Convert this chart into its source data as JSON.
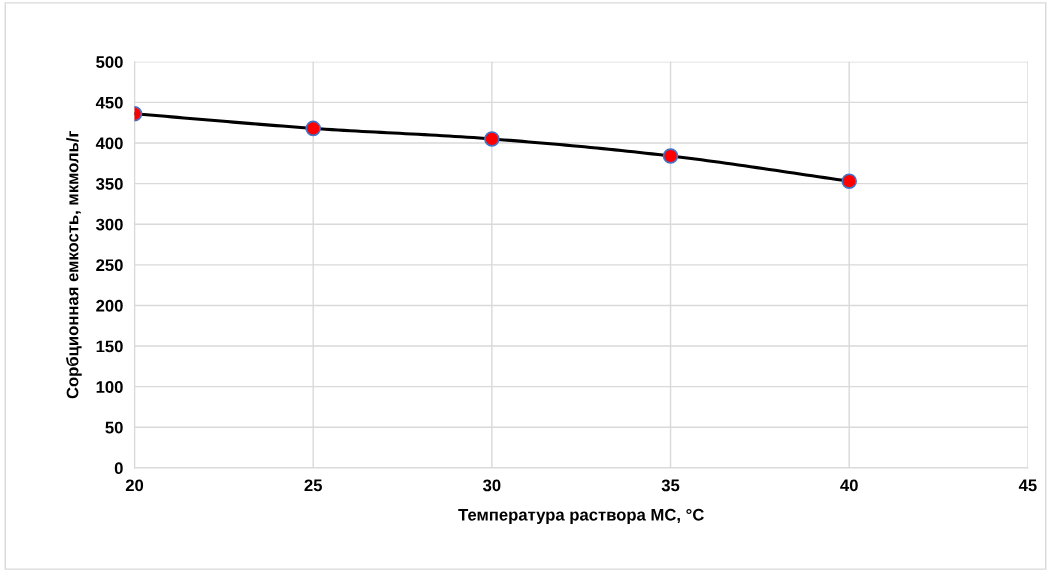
{
  "chart_data": {
    "type": "line",
    "xlabel": "Температура раствора МС, °С",
    "ylabel": "Сорбционная емкость, мкмоль/г",
    "x": [
      20,
      25,
      30,
      35,
      40
    ],
    "series": [
      {
        "color": "#000000",
        "colors": [
          "#ff0000",
          "#ff0000",
          "#ff0000",
          "#ff0000",
          "#ff0000"
        ],
        "values": [
          436,
          418,
          405,
          384,
          353
        ]
      }
    ],
    "xlim": [
      20,
      45
    ],
    "xticks": [
      20,
      25,
      30,
      35,
      40,
      45
    ],
    "ylim": [
      0,
      500
    ],
    "yticks": [
      0,
      50,
      100,
      150,
      200,
      250,
      300,
      350,
      400,
      450,
      500
    ],
    "grid": true,
    "marker": "circle",
    "line_style": "solid",
    "legend": false
  }
}
